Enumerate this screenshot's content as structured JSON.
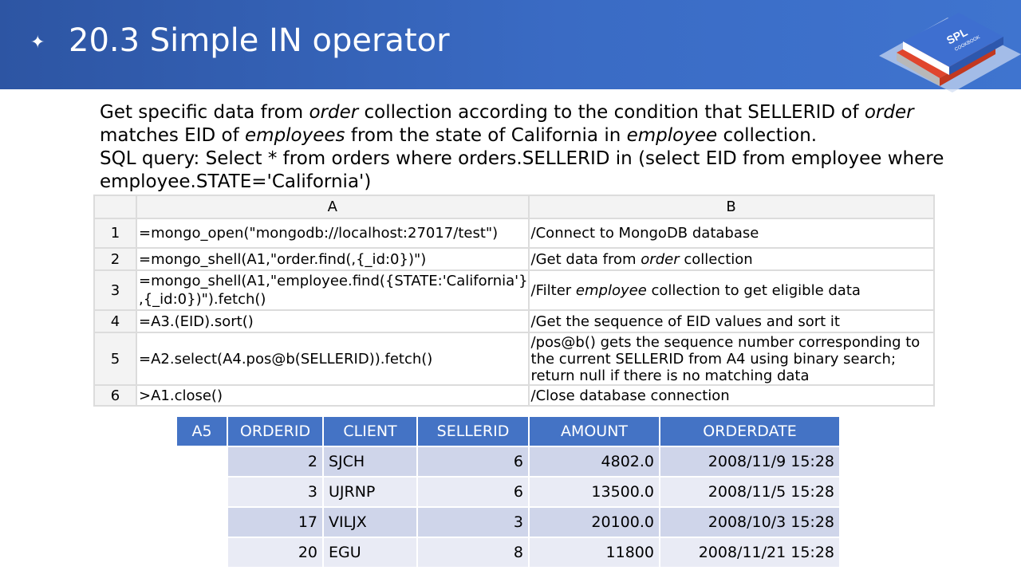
{
  "header": {
    "title": "20.3 Simple IN operator",
    "bullet": "✦",
    "logo_text": "SPL",
    "logo_subtext": "COOKBOOK"
  },
  "description": {
    "line1": [
      "Get specific data from ",
      "order",
      " collection according to the condition that SELLERID of ",
      "order"
    ],
    "line2": [
      "matches EID of ",
      "employees",
      " from the state of California in ",
      "employee",
      " collection."
    ],
    "line3": "SQL query: Select * from orders where orders.SELLERID in (select EID from employee where",
    "line4": "employee.STATE='California')"
  },
  "grid": {
    "col_a_header": "A",
    "col_b_header": "B",
    "rows": [
      {
        "num": "1",
        "a": "=mongo_open(\"mongodb://localhost:27017/test\")",
        "b": [
          "/Connect to MongoDB database"
        ]
      },
      {
        "num": "2",
        "a": "=mongo_shell(A1,\"order.find(,{_id:0})\")",
        "b": [
          "/Get data from ",
          "order",
          " collection"
        ]
      },
      {
        "num": "3",
        "a": "=mongo_shell(A1,\"employee.find({STATE:'California'},{_id:0})\").fetch()",
        "a_line1": "=mongo_shell(A1,\"employee.find({STATE:'California'}",
        "a_line2": ",{_id:0})\").fetch()",
        "b": [
          "/Filter ",
          "employee",
          " collection to get eligible data"
        ]
      },
      {
        "num": "4",
        "a": "=A3.(EID).sort()",
        "b": [
          "/Get the sequence of EID values and sort it"
        ]
      },
      {
        "num": "5",
        "a": "=A2.select(A4.pos@b(SELLERID)).fetch()",
        "b_lines": [
          "/pos@b() gets the sequence number corresponding to",
          "the current SELLERID from A4 using binary search;",
          "return null if there is no matching data"
        ]
      },
      {
        "num": "6",
        "a": ">A1.close()",
        "b": [
          "/Close database connection"
        ]
      }
    ]
  },
  "result": {
    "label": "A5",
    "columns": [
      "ORDERID",
      "CLIENT",
      "SELLERID",
      "AMOUNT",
      "ORDERDATE"
    ],
    "rows": [
      [
        "2",
        "SJCH",
        "6",
        "4802.0",
        "2008/11/9 15:28"
      ],
      [
        "3",
        "UJRNP",
        "6",
        "13500.0",
        "2008/11/5 15:28"
      ],
      [
        "17",
        "VILJX",
        "3",
        "20100.0",
        "2008/10/3 15:28"
      ],
      [
        "20",
        "EGU",
        "8",
        "11800",
        "2008/11/21 15:28"
      ]
    ]
  },
  "colors": {
    "header_bg": "#2d55a3",
    "table_header_bg": "#4473c5",
    "row_dark": "#cfd5ea",
    "row_light": "#e9ebf5",
    "grid_border": "#dcdcdc"
  }
}
